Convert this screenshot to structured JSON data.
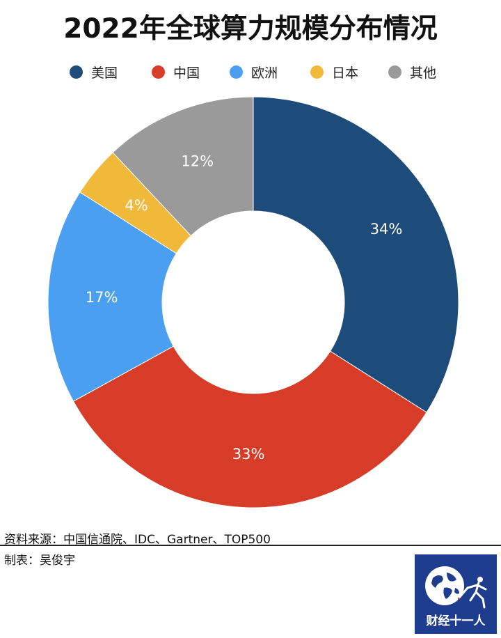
{
  "chart_data": {
    "type": "pie",
    "donut": true,
    "title": "2022年全球算力规模分布情况",
    "categories": [
      "美国",
      "中国",
      "欧洲",
      "日本",
      "其他"
    ],
    "values": [
      34,
      33,
      17,
      4,
      12
    ],
    "value_labels": [
      "34%",
      "33%",
      "17%",
      "4%",
      "12%"
    ],
    "colors": [
      "#1d4b7a",
      "#d63c27",
      "#4a9ff0",
      "#f0b93a",
      "#9a9a9a"
    ],
    "legend_position": "top",
    "start": "12 o'clock",
    "direction": "clockwise"
  },
  "footer": {
    "source": "资料来源：中国信通院、IDC、Gartner、TOP500",
    "maker": "制表：吴俊宇"
  },
  "logo": {
    "text": "财经十一人",
    "icon": "globe-fencer-icon"
  }
}
